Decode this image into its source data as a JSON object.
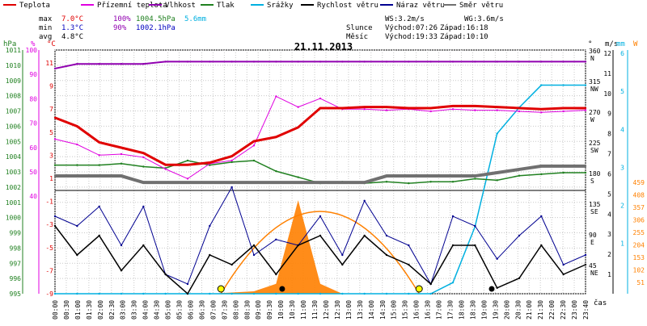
{
  "legend": [
    {
      "label": "Teplota",
      "color": "#e00000"
    },
    {
      "label": "Přízemní teplota",
      "color": "#e000e0"
    },
    {
      "label": "Vlhkost",
      "color": "#9000b0"
    },
    {
      "label": "Tlak",
      "color": "#208020"
    },
    {
      "label": "Srážky",
      "color": "#00b0e0"
    },
    {
      "label": "Rychlost větru",
      "color": "#000000"
    },
    {
      "label": "Náraz větru",
      "color": "#000090"
    },
    {
      "label": "Směr větru",
      "color": "#707070"
    }
  ],
  "stats": {
    "max": {
      "label": "max",
      "temp": "7.0°C",
      "hum": "100%",
      "press": "1004.5hPa",
      "rain": "5.6mm"
    },
    "min": {
      "label": "min",
      "temp": "1.3°C",
      "hum": "90%",
      "press": "1002.1hPa"
    },
    "avg": {
      "label": "avg",
      "temp": "4.8°C"
    }
  },
  "wind_info": {
    "ws": "WS:3.2m/s",
    "wg": "WG:3.6m/s"
  },
  "sun": {
    "label": "Slunce",
    "rise": "Východ:07:26",
    "set": "Západ:16:18"
  },
  "moon": {
    "label": "Měsíc",
    "rise": "Východ:19:33",
    "set": "Západ:10:10"
  },
  "date": "21.11.2013",
  "units": {
    "hpa": "hPa",
    "pct": "%",
    "degc": "°C",
    "deg": "°",
    "ms": "m/s",
    "mm": "mm",
    "wm": "W",
    "time": "čas"
  },
  "colors": {
    "temp": "#e00000",
    "ground": "#e000e0",
    "hum": "#9000b0",
    "press": "#208020",
    "rain": "#00b0e0",
    "wind": "#000000",
    "gust": "#000090",
    "dir": "#707070",
    "sunpath": "#ff8000",
    "solar": "#ff8000"
  },
  "chart_data": {
    "type": "line",
    "title": "21.11.2013",
    "x": [
      "00:00",
      "01:00",
      "02:00",
      "03:00",
      "04:00",
      "05:00",
      "06:00",
      "07:00",
      "08:00",
      "09:00",
      "10:00",
      "11:00",
      "12:00",
      "13:00",
      "14:00",
      "15:00",
      "16:00",
      "17:00",
      "18:00",
      "19:00",
      "20:00",
      "21:00",
      "22:00",
      "23:00",
      "23:45"
    ],
    "x_tick_labels": [
      "00:00",
      "00:30",
      "01:00",
      "01:30",
      "02:00",
      "02:30",
      "03:00",
      "03:30",
      "04:00",
      "04:30",
      "05:00",
      "05:30",
      "06:00",
      "06:30",
      "07:00",
      "07:30",
      "08:00",
      "08:30",
      "09:00",
      "09:30",
      "10:00",
      "10:30",
      "11:00",
      "11:30",
      "12:00",
      "12:30",
      "13:00",
      "13:30",
      "14:00",
      "14:30",
      "15:00",
      "15:30",
      "16:00",
      "16:30",
      "17:00",
      "17:30",
      "18:00",
      "18:30",
      "19:00",
      "19:30",
      "20:00",
      "20:30",
      "21:00",
      "21:30",
      "22:00",
      "22:30",
      "23:00",
      "23:40"
    ],
    "axes": {
      "hpa": {
        "ticks": [
          "1011",
          "1010",
          "1009",
          "1008",
          "1007",
          "1006",
          "1005",
          "1004",
          "1003",
          "1002",
          "1001",
          "1000",
          "999",
          "998",
          "997",
          "996",
          "995"
        ]
      },
      "pct": {
        "ticks": [
          "100",
          "90",
          "80",
          "70",
          "60",
          "50",
          "40"
        ]
      },
      "degc": {
        "ticks": [
          "11",
          "9",
          "7",
          "5",
          "3",
          "1",
          "-1",
          "-3",
          "-5",
          "-7",
          "-9"
        ]
      },
      "deg": {
        "ticks": [
          {
            "v": "360",
            "d": "N"
          },
          {
            "v": "315",
            "d": "NW"
          },
          {
            "v": "270",
            "d": "W"
          },
          {
            "v": "225",
            "d": "SW"
          },
          {
            "v": "180",
            "d": "S"
          },
          {
            "v": "135",
            "d": "SE"
          },
          {
            "v": "90",
            "d": "E"
          },
          {
            "v": "45",
            "d": "NE"
          }
        ]
      },
      "ms": {
        "ticks": [
          "12",
          "11",
          "10",
          "9",
          "8",
          "7",
          "6",
          "5",
          "4",
          "3",
          "2",
          "1"
        ]
      },
      "mm": {
        "ticks": [
          "6",
          "5",
          "4",
          "3",
          "2",
          "1"
        ]
      },
      "wm": {
        "ticks": [
          "459",
          "408",
          "357",
          "306",
          "255",
          "204",
          "153",
          "102",
          "51"
        ]
      }
    },
    "series": [
      {
        "name": "Teplota",
        "values": [
          5.8,
          5.0,
          3.5,
          3.0,
          2.5,
          1.4,
          1.4,
          1.6,
          2.2,
          3.6,
          4.0,
          4.9,
          6.7,
          6.7,
          6.8,
          6.8,
          6.7,
          6.7,
          6.9,
          6.9,
          6.8,
          6.7,
          6.6,
          6.7,
          6.7
        ]
      },
      {
        "name": "Přízemní teplota",
        "values": [
          3.8,
          3.3,
          2.3,
          2.4,
          2.1,
          1.0,
          0.1,
          1.5,
          1.8,
          3.2,
          7.8,
          6.8,
          7.6,
          6.6,
          6.6,
          6.5,
          6.6,
          6.4,
          6.6,
          6.5,
          6.5,
          6.4,
          6.3,
          6.4,
          6.5
        ]
      },
      {
        "name": "Vlhkost",
        "values": [
          93,
          95,
          95,
          95,
          95,
          96,
          96,
          96,
          96,
          96,
          96,
          96,
          96,
          96,
          96,
          96,
          96,
          96,
          96,
          96,
          96,
          96,
          96,
          96,
          96
        ]
      },
      {
        "name": "Tlak",
        "values": [
          1003.5,
          1003.5,
          1003.5,
          1003.6,
          1003.4,
          1003.3,
          1003.8,
          1003.5,
          1003.7,
          1003.8,
          1003.1,
          1002.7,
          1002.3,
          1002.4,
          1002.3,
          1002.4,
          1002.3,
          1002.4,
          1002.4,
          1002.6,
          1002.5,
          1002.8,
          1002.9,
          1003.0,
          1003.0
        ]
      },
      {
        "name": "Srážky",
        "values": [
          0,
          0,
          0,
          0,
          0,
          0,
          0,
          0,
          0,
          0,
          0,
          0,
          0,
          0,
          0,
          0,
          0,
          0,
          0.3,
          1.8,
          4.3,
          5.0,
          5.6,
          5.6,
          5.6
        ]
      },
      {
        "name": "Rychlost větru",
        "values": [
          3.5,
          2.0,
          3.0,
          1.2,
          2.5,
          1.0,
          0,
          2.0,
          1.5,
          2.5,
          1.0,
          2.5,
          3.0,
          1.5,
          3.0,
          2.0,
          1.5,
          0.5,
          2.5,
          2.5,
          0.3,
          0.8,
          2.5,
          1.0,
          1.5
        ]
      },
      {
        "name": "Náraz větru",
        "values": [
          4.0,
          3.5,
          4.5,
          2.5,
          4.5,
          1.0,
          0.5,
          3.5,
          5.5,
          2.0,
          2.8,
          2.5,
          4.0,
          2.0,
          4.8,
          3.0,
          2.5,
          0.5,
          4.0,
          3.5,
          1.8,
          3.0,
          4.0,
          1.5,
          2.0
        ]
      },
      {
        "name": "Směr větru",
        "values": [
          180,
          180,
          180,
          180,
          170,
          170,
          170,
          170,
          170,
          170,
          170,
          170,
          170,
          170,
          170,
          180,
          180,
          180,
          180,
          180,
          185,
          190,
          195,
          195,
          195
        ]
      },
      {
        "name": "Sluneční záření",
        "values": [
          0,
          0,
          0,
          0,
          0,
          0,
          0,
          0,
          5,
          10,
          40,
          380,
          40,
          0,
          0,
          0,
          0,
          0,
          0,
          0,
          0,
          0,
          0,
          0,
          0
        ]
      }
    ]
  }
}
